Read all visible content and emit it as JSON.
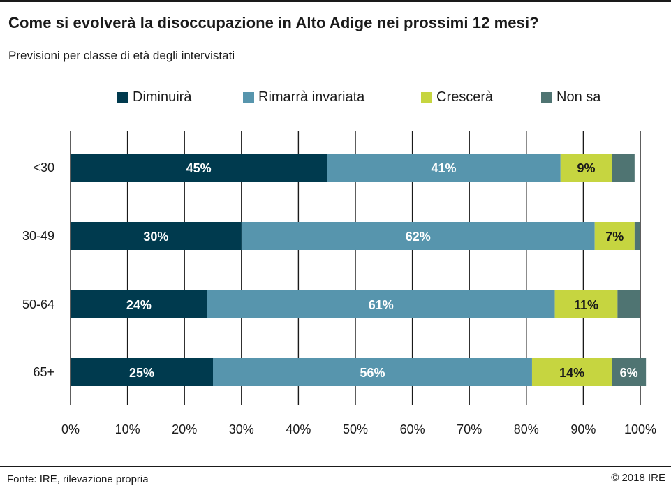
{
  "title": "Come si evolverà la disoccupazione in Alto Adige nei prossimi 12 mesi?",
  "subtitle": "Previsioni per classe di età degli intervistati",
  "source": "Fonte: IRE, rilevazione propria",
  "copyright": "© 2018 IRE",
  "chart_data": {
    "type": "bar",
    "orientation": "horizontal",
    "stacked": true,
    "categories": [
      "<30",
      "30-49",
      "50-64",
      "65+"
    ],
    "series": [
      {
        "name": "Diminuirà",
        "color": "#003a4e",
        "values": [
          45,
          30,
          24,
          25
        ],
        "labels": [
          "45%",
          "30%",
          "24%",
          "25%"
        ]
      },
      {
        "name": "Rimarrà invariata",
        "color": "#5795ad",
        "values": [
          41,
          62,
          61,
          56
        ],
        "labels": [
          "41%",
          "62%",
          "61%",
          "56%"
        ]
      },
      {
        "name": "Crescerà",
        "color": "#c6d540",
        "values": [
          9,
          7,
          11,
          14
        ],
        "labels": [
          "9%",
          "7%",
          "11%",
          "14%"
        ]
      },
      {
        "name": "Non sa",
        "color": "#4f7472",
        "values": [
          4,
          1,
          4,
          6
        ],
        "labels": [
          "",
          "",
          "",
          "6%"
        ]
      }
    ],
    "xlim": [
      0,
      100
    ],
    "xticks": [
      "0%",
      "10%",
      "20%",
      "30%",
      "40%",
      "50%",
      "60%",
      "70%",
      "80%",
      "90%",
      "100%"
    ],
    "legend_position": "top"
  }
}
